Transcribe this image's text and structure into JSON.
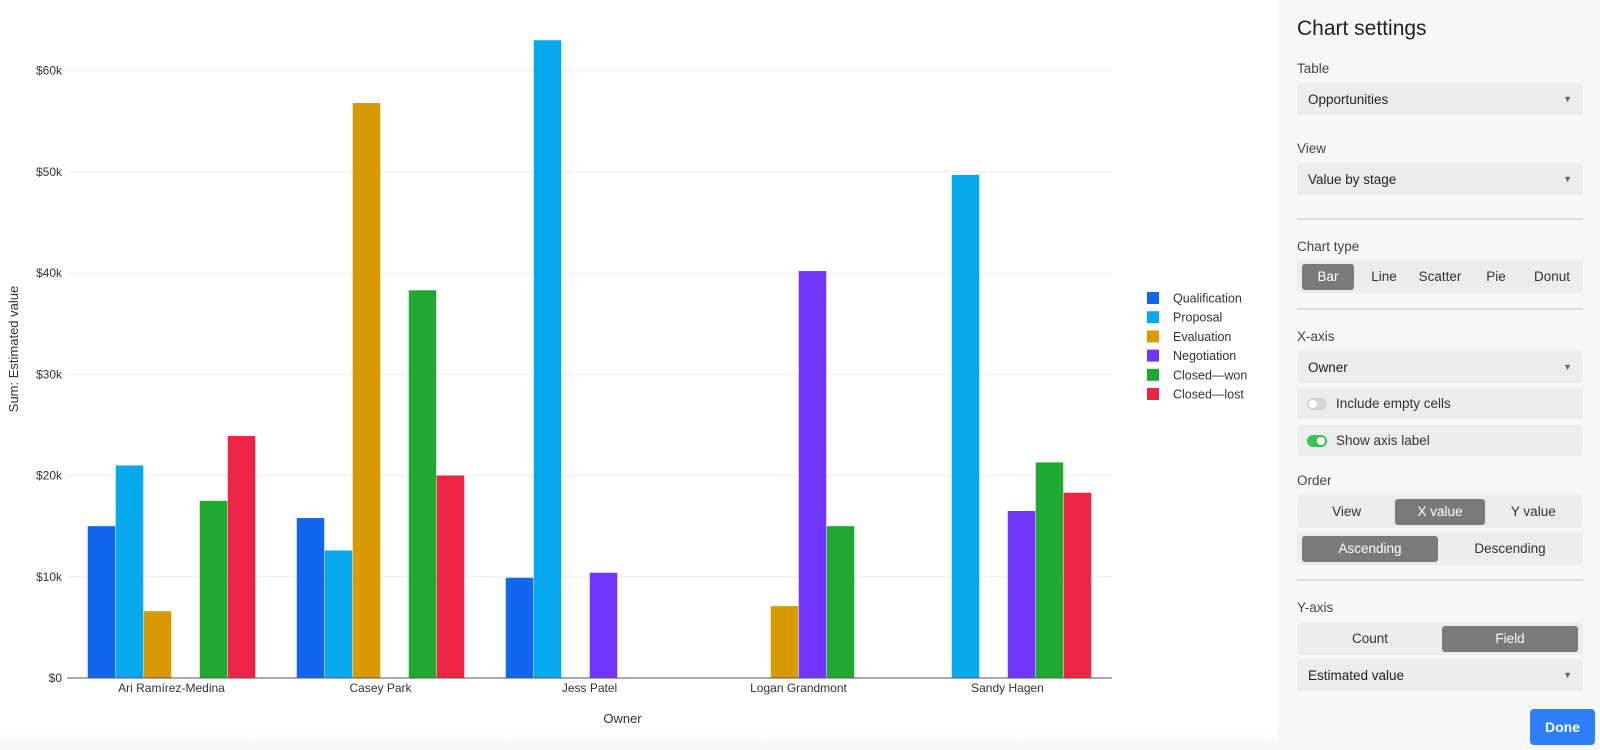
{
  "chart_data": {
    "type": "bar",
    "xlabel": "Owner",
    "ylabel": "Sum: Estimated value",
    "ylim": [
      0,
      65000
    ],
    "yticks": [
      0,
      10000,
      20000,
      30000,
      40000,
      50000,
      60000
    ],
    "ytick_labels": [
      "$0",
      "$10k",
      "$20k",
      "$30k",
      "$40k",
      "$50k",
      "$60k"
    ],
    "grid": true,
    "legend_position": "right",
    "categories": [
      "Ari Ramírez-Medina",
      "Casey Park",
      "Jess Patel",
      "Logan Grandmont",
      "Sandy Hagen"
    ],
    "series": [
      {
        "name": "Qualification",
        "color": "#1166ee",
        "values": [
          15000,
          15800,
          9900,
          0,
          0
        ]
      },
      {
        "name": "Proposal",
        "color": "#06a9ee",
        "values": [
          21000,
          12600,
          63000,
          0,
          49700
        ]
      },
      {
        "name": "Evaluation",
        "color": "#d99a01",
        "values": [
          6600,
          56800,
          0,
          7100,
          0
        ]
      },
      {
        "name": "Negotiation",
        "color": "#7035ff",
        "values": [
          0,
          0,
          10400,
          40200,
          16500
        ]
      },
      {
        "name": "Closed—won",
        "color": "#20a932",
        "values": [
          17500,
          38300,
          0,
          15000,
          21300
        ]
      },
      {
        "name": "Closed—lost",
        "color": "#ee2445",
        "values": [
          23900,
          20000,
          0,
          0,
          18300
        ]
      }
    ]
  },
  "settings": {
    "title": "Chart settings",
    "table_label": "Table",
    "table_value": "Opportunities",
    "view_label": "View",
    "view_value": "Value by stage",
    "chart_type_label": "Chart type",
    "chart_types": [
      "Bar",
      "Line",
      "Scatter",
      "Pie",
      "Donut"
    ],
    "chart_type_selected": "Bar",
    "x_axis_label": "X-axis",
    "x_axis_value": "Owner",
    "include_empty_label": "Include empty cells",
    "include_empty_on": false,
    "show_axis_label": "Show axis label",
    "show_axis_on": true,
    "order_label": "Order",
    "order_by": [
      "View",
      "X value",
      "Y value"
    ],
    "order_by_selected": "X value",
    "order_dir": [
      "Ascending",
      "Descending"
    ],
    "order_dir_selected": "Ascending",
    "y_axis_label": "Y-axis",
    "y_modes": [
      "Count",
      "Field"
    ],
    "y_mode_selected": "Field",
    "y_field_value": "Estimated value",
    "done_label": "Done"
  }
}
